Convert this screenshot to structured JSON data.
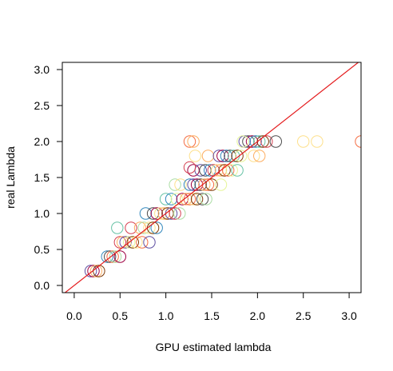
{
  "chart_data": {
    "type": "scatter",
    "title": "",
    "xlabel": "GPU estimated lambda",
    "ylabel": "real Lambda",
    "xlim": [
      -0.13,
      3.13
    ],
    "ylim": [
      -0.1,
      3.1
    ],
    "x_ticks": [
      "0.0",
      "0.5",
      "1.0",
      "1.5",
      "2.0",
      "2.5",
      "3.0"
    ],
    "y_ticks": [
      "0.0",
      "0.5",
      "1.0",
      "1.5",
      "2.0",
      "2.5",
      "3.0"
    ],
    "grid": false,
    "legend": "none",
    "reference_line": {
      "slope": 1,
      "intercept": 0,
      "color": "#e41a1c"
    },
    "palette": [
      "#9e0142",
      "#d53e4f",
      "#f46d43",
      "#fdae61",
      "#fee08b",
      "#e6f598",
      "#abdda4",
      "#66c2a5",
      "#3288bd",
      "#5e4fa2",
      "#4d4d4d",
      "#7f3b08"
    ],
    "points": [
      {
        "x": 0.18,
        "y": 0.2,
        "c": 9
      },
      {
        "x": 0.21,
        "y": 0.2,
        "c": 0
      },
      {
        "x": 0.24,
        "y": 0.2,
        "c": 3
      },
      {
        "x": 0.27,
        "y": 0.2,
        "c": 11
      },
      {
        "x": 0.36,
        "y": 0.4,
        "c": 8
      },
      {
        "x": 0.39,
        "y": 0.4,
        "c": 10
      },
      {
        "x": 0.42,
        "y": 0.4,
        "c": 2
      },
      {
        "x": 0.45,
        "y": 0.4,
        "c": 6
      },
      {
        "x": 0.5,
        "y": 0.4,
        "c": 0
      },
      {
        "x": 0.47,
        "y": 0.8,
        "c": 7
      },
      {
        "x": 0.5,
        "y": 0.6,
        "c": 1
      },
      {
        "x": 0.53,
        "y": 0.6,
        "c": 3
      },
      {
        "x": 0.56,
        "y": 0.6,
        "c": 9
      },
      {
        "x": 0.6,
        "y": 0.6,
        "c": 5
      },
      {
        "x": 0.64,
        "y": 0.6,
        "c": 11
      },
      {
        "x": 0.68,
        "y": 0.6,
        "c": 4
      },
      {
        "x": 0.74,
        "y": 0.6,
        "c": 2
      },
      {
        "x": 0.62,
        "y": 0.8,
        "c": 1
      },
      {
        "x": 0.72,
        "y": 0.8,
        "c": 3
      },
      {
        "x": 0.76,
        "y": 0.8,
        "c": 6
      },
      {
        "x": 0.82,
        "y": 0.8,
        "c": 4
      },
      {
        "x": 0.86,
        "y": 0.8,
        "c": 11
      },
      {
        "x": 0.9,
        "y": 0.8,
        "c": 8
      },
      {
        "x": 0.82,
        "y": 0.6,
        "c": 9
      },
      {
        "x": 0.78,
        "y": 1.0,
        "c": 8
      },
      {
        "x": 0.86,
        "y": 1.0,
        "c": 10
      },
      {
        "x": 0.9,
        "y": 1.0,
        "c": 0
      },
      {
        "x": 0.94,
        "y": 1.0,
        "c": 4
      },
      {
        "x": 0.98,
        "y": 1.0,
        "c": 3
      },
      {
        "x": 1.02,
        "y": 1.0,
        "c": 11
      },
      {
        "x": 1.06,
        "y": 1.0,
        "c": 9
      },
      {
        "x": 1.1,
        "y": 1.0,
        "c": 1
      },
      {
        "x": 1.15,
        "y": 1.0,
        "c": 6
      },
      {
        "x": 1.0,
        "y": 1.2,
        "c": 7
      },
      {
        "x": 1.06,
        "y": 1.2,
        "c": 8
      },
      {
        "x": 1.12,
        "y": 1.2,
        "c": 5
      },
      {
        "x": 1.18,
        "y": 1.2,
        "c": 0
      },
      {
        "x": 1.22,
        "y": 1.2,
        "c": 3
      },
      {
        "x": 1.26,
        "y": 1.2,
        "c": 2
      },
      {
        "x": 1.3,
        "y": 1.2,
        "c": 4
      },
      {
        "x": 1.34,
        "y": 1.2,
        "c": 11
      },
      {
        "x": 1.4,
        "y": 1.2,
        "c": 10
      },
      {
        "x": 1.44,
        "y": 1.2,
        "c": 6
      },
      {
        "x": 1.1,
        "y": 1.4,
        "c": 6
      },
      {
        "x": 1.16,
        "y": 1.4,
        "c": 4
      },
      {
        "x": 1.26,
        "y": 1.4,
        "c": 8
      },
      {
        "x": 1.3,
        "y": 1.4,
        "c": 9
      },
      {
        "x": 1.34,
        "y": 1.4,
        "c": 0
      },
      {
        "x": 1.38,
        "y": 1.4,
        "c": 10
      },
      {
        "x": 1.42,
        "y": 1.4,
        "c": 3
      },
      {
        "x": 1.46,
        "y": 1.4,
        "c": 2
      },
      {
        "x": 1.5,
        "y": 1.4,
        "c": 11
      },
      {
        "x": 1.6,
        "y": 1.4,
        "c": 5
      },
      {
        "x": 1.3,
        "y": 1.6,
        "c": 0
      },
      {
        "x": 1.38,
        "y": 1.6,
        "c": 9
      },
      {
        "x": 1.43,
        "y": 1.6,
        "c": 10
      },
      {
        "x": 1.48,
        "y": 1.6,
        "c": 8
      },
      {
        "x": 1.52,
        "y": 1.6,
        "c": 1
      },
      {
        "x": 1.56,
        "y": 1.6,
        "c": 4
      },
      {
        "x": 1.6,
        "y": 1.6,
        "c": 3
      },
      {
        "x": 1.64,
        "y": 1.6,
        "c": 11
      },
      {
        "x": 1.68,
        "y": 1.6,
        "c": 2
      },
      {
        "x": 1.72,
        "y": 1.6,
        "c": 5
      },
      {
        "x": 1.78,
        "y": 1.6,
        "c": 7
      },
      {
        "x": 1.32,
        "y": 1.8,
        "c": 4
      },
      {
        "x": 1.46,
        "y": 1.8,
        "c": 3
      },
      {
        "x": 1.58,
        "y": 1.8,
        "c": 9
      },
      {
        "x": 1.62,
        "y": 1.8,
        "c": 0
      },
      {
        "x": 1.66,
        "y": 1.8,
        "c": 8
      },
      {
        "x": 1.7,
        "y": 1.8,
        "c": 10
      },
      {
        "x": 1.74,
        "y": 1.8,
        "c": 7
      },
      {
        "x": 1.78,
        "y": 1.8,
        "c": 11
      },
      {
        "x": 1.82,
        "y": 1.8,
        "c": 5
      },
      {
        "x": 1.96,
        "y": 1.8,
        "c": 4
      },
      {
        "x": 2.02,
        "y": 1.8,
        "c": 3
      },
      {
        "x": 1.26,
        "y": 2.0,
        "c": 2
      },
      {
        "x": 1.3,
        "y": 2.0,
        "c": 3
      },
      {
        "x": 1.86,
        "y": 2.0,
        "c": 9
      },
      {
        "x": 1.9,
        "y": 2.0,
        "c": 10
      },
      {
        "x": 1.94,
        "y": 2.0,
        "c": 0
      },
      {
        "x": 1.98,
        "y": 2.0,
        "c": 8
      },
      {
        "x": 2.02,
        "y": 2.0,
        "c": 7
      },
      {
        "x": 2.06,
        "y": 2.0,
        "c": 11
      },
      {
        "x": 2.1,
        "y": 2.0,
        "c": 1
      },
      {
        "x": 2.2,
        "y": 2.0,
        "c": 10
      },
      {
        "x": 2.5,
        "y": 2.0,
        "c": 4
      },
      {
        "x": 2.65,
        "y": 2.0,
        "c": 4
      },
      {
        "x": 3.13,
        "y": 2.0,
        "c": 2
      },
      {
        "x": 1.26,
        "y": 1.64,
        "c": 1
      },
      {
        "x": 1.84,
        "y": 2.0,
        "c": 5
      }
    ]
  }
}
